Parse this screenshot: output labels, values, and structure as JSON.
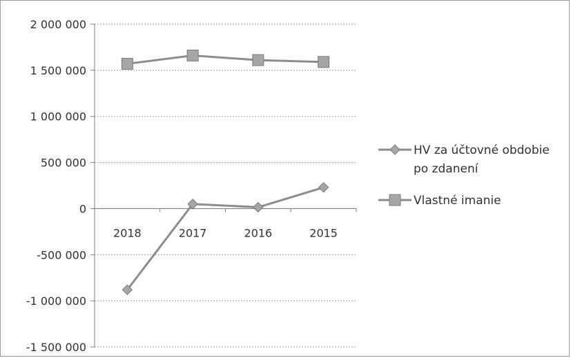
{
  "chart_data": {
    "type": "line",
    "categories": [
      "2018",
      "2017",
      "2016",
      "2015"
    ],
    "series": [
      {
        "name": "HV za účtovné obdobie po zdanení",
        "name_lines": [
          "HV za účtovné obdobie",
          "po zdanení"
        ],
        "marker": "diamond",
        "values": [
          -880000,
          50000,
          15000,
          230000
        ]
      },
      {
        "name": "Vlastné imanie",
        "name_lines": [
          "Vlastné imanie"
        ],
        "marker": "square",
        "values": [
          1570000,
          1660000,
          1610000,
          1590000
        ]
      }
    ],
    "y_ticks": [
      "2 000 000",
      "1 500 000",
      "1 000 000",
      "500 000",
      "0",
      "-500 000",
      "-1 000 000",
      "-1 500 000"
    ],
    "ylim": [
      -1500000,
      2000000
    ],
    "grid": true,
    "legend_position": "right",
    "colors": {
      "line": "#8c8c8c",
      "marker_fill": "#a6a6a6",
      "marker_edge": "#7a7a7a",
      "grid": "#a0a0a0",
      "axis": "#808080"
    }
  }
}
